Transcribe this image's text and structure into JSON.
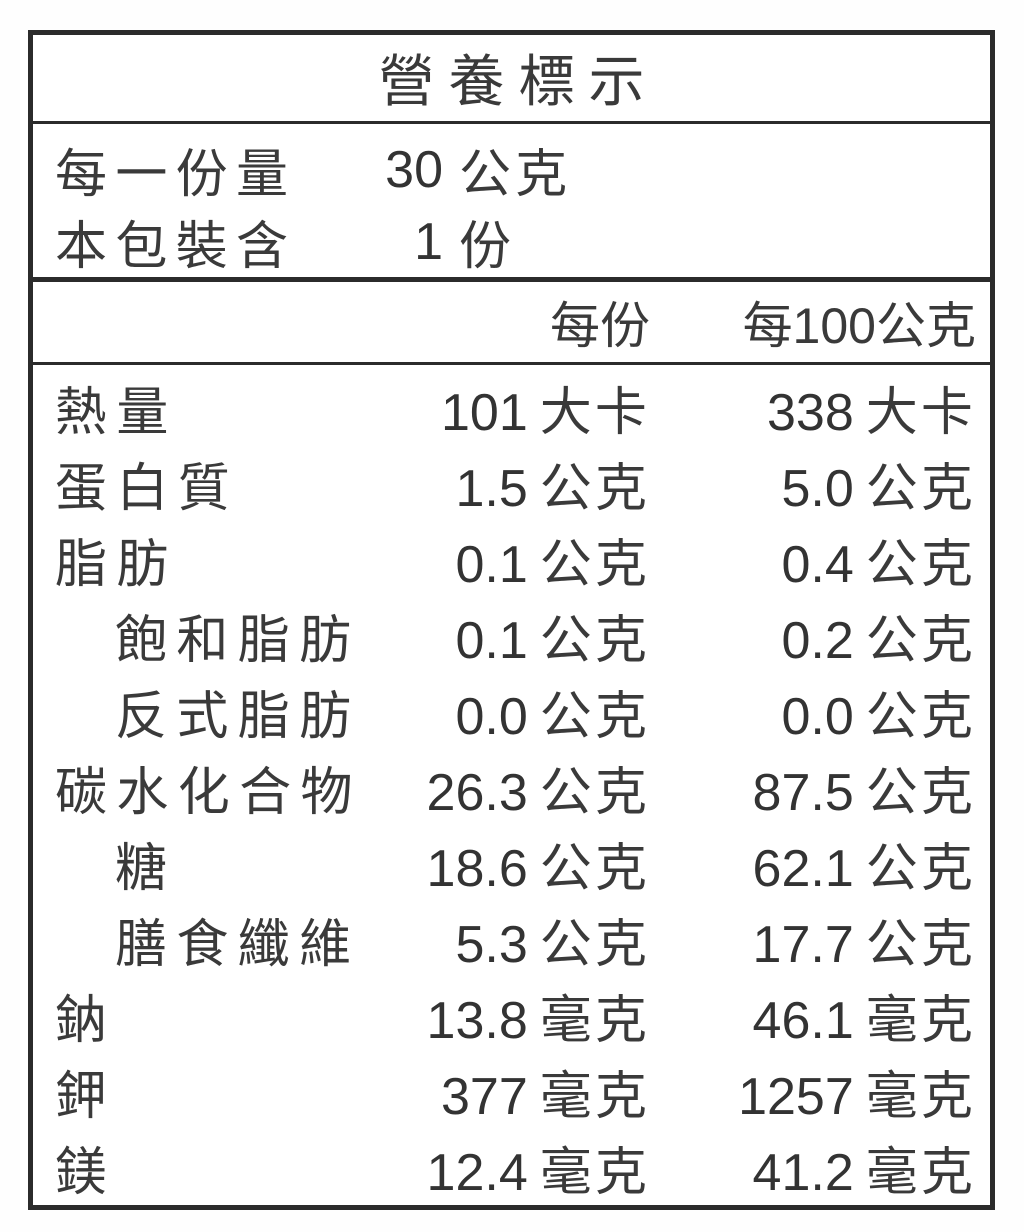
{
  "label": {
    "title": "營養標示",
    "serving_rows": [
      {
        "label": "每一份量",
        "num": "30",
        "unit": "公克"
      },
      {
        "label": "本包裝含",
        "num": "1",
        "unit": "份"
      }
    ],
    "col_headers": {
      "per_serving": "每份",
      "per_100g": "每100公克"
    }
  },
  "rows": [
    {
      "label": "熱量",
      "v1n": "101",
      "v1u": "大卡",
      "v2n": "338",
      "v2u": "大卡"
    },
    {
      "label": "蛋白質",
      "v1n": "1.5",
      "v1u": "公克",
      "v2n": "5.0",
      "v2u": "公克"
    },
    {
      "label": "脂肪",
      "v1n": "0.1",
      "v1u": "公克",
      "v2n": "0.4",
      "v2u": "公克"
    },
    {
      "label": "飽和脂肪",
      "v1n": "0.1",
      "v1u": "公克",
      "v2n": "0.2",
      "v2u": "公克"
    },
    {
      "label": "反式脂肪",
      "v1n": "0.0",
      "v1u": "公克",
      "v2n": "0.0",
      "v2u": "公克"
    },
    {
      "label": "碳水化合物",
      "v1n": "26.3",
      "v1u": "公克",
      "v2n": "87.5",
      "v2u": "公克"
    },
    {
      "label": "糖",
      "v1n": "18.6",
      "v1u": "公克",
      "v2n": "62.1",
      "v2u": "公克"
    },
    {
      "label": "膳食纖維",
      "v1n": "5.3",
      "v1u": "公克",
      "v2n": "17.7",
      "v2u": "公克"
    },
    {
      "label": "鈉",
      "v1n": "13.8",
      "v1u": "毫克",
      "v2n": "46.1",
      "v2u": "毫克"
    },
    {
      "label": "鉀",
      "v1n": "377",
      "v1u": "毫克",
      "v2n": "1257",
      "v2u": "毫克"
    },
    {
      "label": "鎂",
      "v1n": "12.4",
      "v1u": "毫克",
      "v2n": "41.2",
      "v2u": "毫克"
    }
  ],
  "colors": {
    "text": "#333333",
    "border": "#2b2b2b",
    "background": "#ffffff"
  }
}
